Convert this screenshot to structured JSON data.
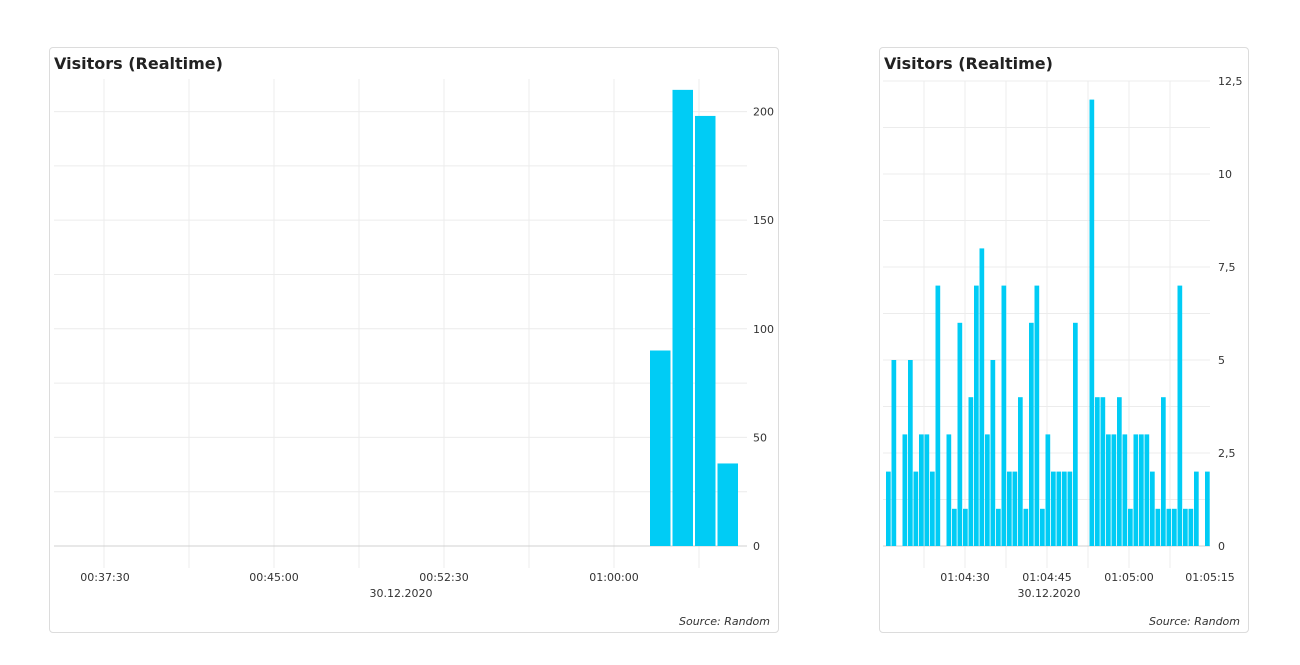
{
  "chart_data": [
    {
      "type": "bar",
      "title": "Visitors (Realtime)",
      "source": "Source: Random",
      "y_ticks": [
        0,
        50,
        100,
        150,
        200
      ],
      "y_tick_labels": [
        "0",
        "50",
        "100",
        "150",
        "200"
      ],
      "ylim": [
        0,
        215
      ],
      "x_tick_labels": [
        "00:37:30",
        "00:45:00",
        "00:52:30",
        "01:00:00"
      ],
      "date_label": "30.12.2020",
      "values": [
        90,
        210,
        198,
        38
      ],
      "color": "#00ccf5"
    },
    {
      "type": "bar",
      "title": "Visitors (Realtime)",
      "source": "Source: Random",
      "y_ticks": [
        0,
        2.5,
        5,
        7.5,
        10,
        12.5
      ],
      "y_tick_labels": [
        "0",
        "2,5",
        "5",
        "7,5",
        "10",
        "12,5"
      ],
      "ylim": [
        0,
        12.5
      ],
      "x_tick_labels": [
        "01:04:30",
        "01:04:45",
        "01:05:00",
        "01:05:15"
      ],
      "date_label": "30.12.2020",
      "values": [
        2,
        5,
        0,
        3,
        5,
        2,
        3,
        3,
        2,
        7,
        0,
        3,
        1,
        6,
        1,
        4,
        7,
        8,
        3,
        5,
        1,
        7,
        2,
        2,
        4,
        1,
        6,
        7,
        1,
        3,
        2,
        2,
        2,
        2,
        6,
        0,
        0,
        12,
        4,
        4,
        3,
        3,
        4,
        3,
        1,
        3,
        3,
        3,
        2,
        1,
        4,
        1,
        1,
        7,
        1,
        1,
        2,
        0,
        2
      ],
      "color": "#00ccf5"
    }
  ]
}
